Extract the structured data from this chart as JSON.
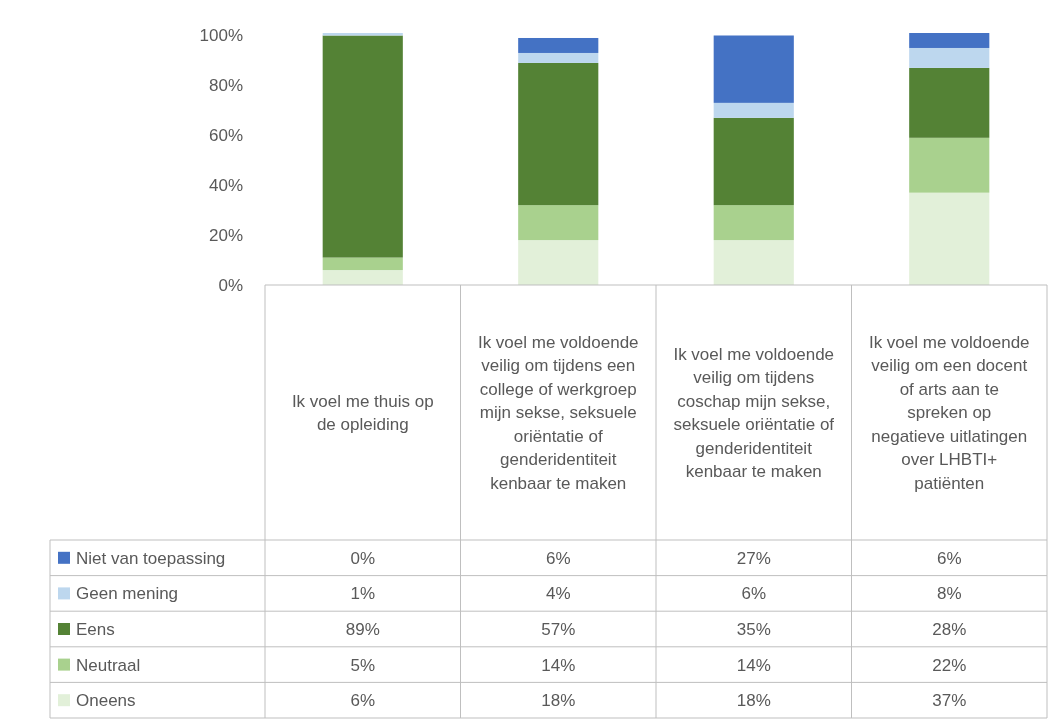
{
  "chart_data": {
    "type": "bar",
    "stacked": true,
    "legend": "bottom",
    "grid": false,
    "categories": [
      "Ik voel me thuis op de opleiding",
      "Ik voel me voldoende veilig om tijdens een college of werkgroep mijn sekse, seksuele oriëntatie of genderidentiteit kenbaar te maken",
      "Ik voel me voldoende veilig om tijdens coschap mijn sekse, seksuele oriëntatie of genderidentiteit kenbaar te maken",
      "Ik voel me voldoende veilig om een docent of arts aan te spreken op negatieve uitlatingen over LHBTI+ patiënten"
    ],
    "ylim": [
      0,
      101
    ],
    "yticks": [
      {
        "value": 0,
        "label": "0%"
      },
      {
        "value": 20,
        "label": "20%"
      },
      {
        "value": 40,
        "label": "40%"
      },
      {
        "value": 60,
        "label": "60%"
      },
      {
        "value": 80,
        "label": "80%"
      },
      {
        "value": 100,
        "label": "100%"
      }
    ],
    "series": [
      {
        "name": "Oneens",
        "color": "#e2f0d9",
        "values": [
          6,
          18,
          18,
          37
        ],
        "value_labels": [
          "6%",
          "18%",
          "18%",
          "37%"
        ]
      },
      {
        "name": "Neutraal",
        "color": "#a9d18e",
        "values": [
          5,
          14,
          14,
          22
        ],
        "value_labels": [
          "5%",
          "14%",
          "14%",
          "22%"
        ]
      },
      {
        "name": "Eens",
        "color": "#548235",
        "values": [
          89,
          57,
          35,
          28
        ],
        "value_labels": [
          "89%",
          "57%",
          "35%",
          "28%"
        ]
      },
      {
        "name": "Geen mening",
        "color": "#bdd7ee",
        "values": [
          1,
          4,
          6,
          8
        ],
        "value_labels": [
          "1%",
          "4%",
          "6%",
          "8%"
        ]
      },
      {
        "name": "Niet van toepassing",
        "color": "#4472c4",
        "values": [
          0,
          6,
          27,
          6
        ],
        "value_labels": [
          "0%",
          "6%",
          "27%",
          "6%"
        ]
      }
    ]
  }
}
